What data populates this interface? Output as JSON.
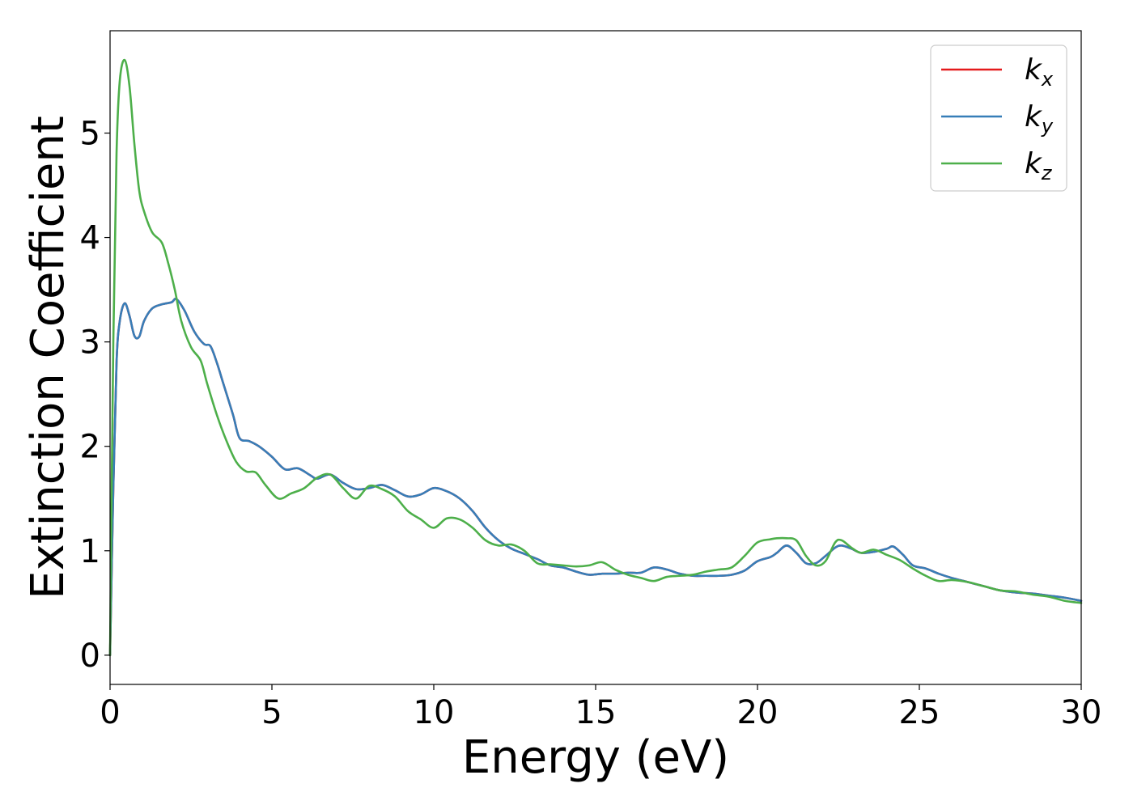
{
  "chart_data": {
    "type": "line",
    "title": "",
    "xlabel": "Energy (eV)",
    "ylabel": "Extinction Coefficient",
    "xlim": [
      0,
      30
    ],
    "ylim": [
      -0.28,
      5.98
    ],
    "xticks": [
      0,
      5,
      10,
      15,
      20,
      25,
      30
    ],
    "yticks": [
      0,
      1,
      2,
      3,
      4,
      5
    ],
    "grid": false,
    "legend_position": "top-right",
    "series": [
      {
        "name": "k_x",
        "legend_main": "k",
        "legend_sub": "x",
        "color": "#e41a1c",
        "x": [
          0,
          0.1,
          0.2,
          0.3,
          0.45,
          0.6,
          0.75,
          0.9,
          1.05,
          1.3,
          1.6,
          1.9,
          2.05,
          2.3,
          2.6,
          2.9,
          3.1,
          3.3,
          3.5,
          3.8,
          4.0,
          4.3,
          4.6,
          5.0,
          5.4,
          5.8,
          6.2,
          6.4,
          6.8,
          7.2,
          7.6,
          8.0,
          8.4,
          8.8,
          9.2,
          9.6,
          10.0,
          10.4,
          10.8,
          11.2,
          11.6,
          12.0,
          12.4,
          12.8,
          13.2,
          13.6,
          14.0,
          14.4,
          14.8,
          15.2,
          15.6,
          16.0,
          16.4,
          16.8,
          17.2,
          17.6,
          18.0,
          18.4,
          18.8,
          19.2,
          19.6,
          20.0,
          20.4,
          20.6,
          20.9,
          21.2,
          21.5,
          21.8,
          22.1,
          22.4,
          22.6,
          22.9,
          23.2,
          23.6,
          24.0,
          24.2,
          24.5,
          24.8,
          25.2,
          25.6,
          26.0,
          26.5,
          27.0,
          27.5,
          28.0,
          28.5,
          29.0,
          29.5,
          30.0
        ],
        "y": [
          0,
          1.6,
          2.8,
          3.2,
          3.37,
          3.25,
          3.06,
          3.05,
          3.2,
          3.32,
          3.36,
          3.38,
          3.41,
          3.3,
          3.1,
          2.98,
          2.96,
          2.8,
          2.6,
          2.3,
          2.08,
          2.05,
          2.0,
          1.9,
          1.78,
          1.79,
          1.72,
          1.69,
          1.73,
          1.65,
          1.59,
          1.6,
          1.63,
          1.58,
          1.52,
          1.54,
          1.6,
          1.57,
          1.5,
          1.38,
          1.22,
          1.1,
          1.02,
          0.97,
          0.92,
          0.86,
          0.84,
          0.8,
          0.77,
          0.78,
          0.78,
          0.79,
          0.79,
          0.84,
          0.82,
          0.78,
          0.76,
          0.76,
          0.76,
          0.77,
          0.81,
          0.9,
          0.94,
          0.98,
          1.05,
          0.98,
          0.88,
          0.88,
          0.95,
          1.03,
          1.05,
          1.02,
          0.98,
          0.99,
          1.02,
          1.04,
          0.96,
          0.86,
          0.83,
          0.78,
          0.74,
          0.7,
          0.66,
          0.62,
          0.6,
          0.59,
          0.57,
          0.55,
          0.52
        ]
      },
      {
        "name": "k_y",
        "legend_main": "k",
        "legend_sub": "y",
        "color": "#377eb8",
        "x": [
          0,
          0.1,
          0.2,
          0.3,
          0.45,
          0.6,
          0.75,
          0.9,
          1.05,
          1.3,
          1.6,
          1.9,
          2.05,
          2.3,
          2.6,
          2.9,
          3.1,
          3.3,
          3.5,
          3.8,
          4.0,
          4.3,
          4.6,
          5.0,
          5.4,
          5.8,
          6.2,
          6.4,
          6.8,
          7.2,
          7.6,
          8.0,
          8.4,
          8.8,
          9.2,
          9.6,
          10.0,
          10.4,
          10.8,
          11.2,
          11.6,
          12.0,
          12.4,
          12.8,
          13.2,
          13.6,
          14.0,
          14.4,
          14.8,
          15.2,
          15.6,
          16.0,
          16.4,
          16.8,
          17.2,
          17.6,
          18.0,
          18.4,
          18.8,
          19.2,
          19.6,
          20.0,
          20.4,
          20.6,
          20.9,
          21.2,
          21.5,
          21.8,
          22.1,
          22.4,
          22.6,
          22.9,
          23.2,
          23.6,
          24.0,
          24.2,
          24.5,
          24.8,
          25.2,
          25.6,
          26.0,
          26.5,
          27.0,
          27.5,
          28.0,
          28.5,
          29.0,
          29.5,
          30.0
        ],
        "y": [
          0,
          1.6,
          2.8,
          3.2,
          3.37,
          3.25,
          3.06,
          3.05,
          3.2,
          3.32,
          3.36,
          3.38,
          3.41,
          3.3,
          3.1,
          2.98,
          2.96,
          2.8,
          2.6,
          2.3,
          2.08,
          2.05,
          2.0,
          1.9,
          1.78,
          1.79,
          1.72,
          1.69,
          1.73,
          1.65,
          1.59,
          1.6,
          1.63,
          1.58,
          1.52,
          1.54,
          1.6,
          1.57,
          1.5,
          1.38,
          1.22,
          1.1,
          1.02,
          0.97,
          0.92,
          0.86,
          0.84,
          0.8,
          0.77,
          0.78,
          0.78,
          0.79,
          0.79,
          0.84,
          0.82,
          0.78,
          0.76,
          0.76,
          0.76,
          0.77,
          0.81,
          0.9,
          0.94,
          0.98,
          1.05,
          0.98,
          0.88,
          0.88,
          0.95,
          1.03,
          1.05,
          1.02,
          0.98,
          0.99,
          1.02,
          1.04,
          0.96,
          0.86,
          0.83,
          0.78,
          0.74,
          0.7,
          0.66,
          0.62,
          0.6,
          0.59,
          0.57,
          0.55,
          0.52
        ]
      },
      {
        "name": "k_z",
        "legend_main": "k",
        "legend_sub": "z",
        "color": "#4daf4a",
        "x": [
          0,
          0.1,
          0.2,
          0.3,
          0.45,
          0.6,
          0.75,
          0.9,
          1.05,
          1.3,
          1.6,
          1.8,
          2.0,
          2.2,
          2.5,
          2.8,
          3.0,
          3.3,
          3.6,
          3.9,
          4.2,
          4.5,
          4.8,
          5.2,
          5.6,
          6.0,
          6.4,
          6.8,
          7.2,
          7.6,
          8.0,
          8.4,
          8.8,
          9.2,
          9.6,
          10.0,
          10.4,
          10.8,
          11.2,
          11.6,
          12.0,
          12.4,
          12.8,
          13.2,
          13.6,
          14.0,
          14.4,
          14.8,
          15.2,
          15.6,
          16.0,
          16.4,
          16.8,
          17.2,
          17.6,
          18.0,
          18.4,
          18.8,
          19.2,
          19.6,
          20.0,
          20.4,
          20.6,
          20.9,
          21.2,
          21.5,
          21.8,
          22.1,
          22.4,
          22.6,
          22.9,
          23.2,
          23.6,
          24.0,
          24.4,
          24.8,
          25.2,
          25.6,
          26.0,
          26.5,
          27.0,
          27.5,
          28.0,
          28.5,
          29.0,
          29.5,
          30.0
        ],
        "y": [
          0,
          3.0,
          4.8,
          5.5,
          5.7,
          5.45,
          4.9,
          4.45,
          4.25,
          4.05,
          3.95,
          3.75,
          3.5,
          3.2,
          2.95,
          2.82,
          2.6,
          2.3,
          2.05,
          1.85,
          1.76,
          1.75,
          1.63,
          1.5,
          1.55,
          1.6,
          1.7,
          1.73,
          1.6,
          1.5,
          1.62,
          1.59,
          1.52,
          1.38,
          1.3,
          1.22,
          1.31,
          1.3,
          1.22,
          1.1,
          1.05,
          1.06,
          1.0,
          0.88,
          0.87,
          0.86,
          0.85,
          0.86,
          0.89,
          0.82,
          0.77,
          0.74,
          0.71,
          0.75,
          0.76,
          0.77,
          0.8,
          0.82,
          0.84,
          0.95,
          1.08,
          1.11,
          1.12,
          1.12,
          1.1,
          0.95,
          0.86,
          0.9,
          1.08,
          1.1,
          1.03,
          0.98,
          1.01,
          0.96,
          0.91,
          0.83,
          0.76,
          0.71,
          0.72,
          0.7,
          0.66,
          0.62,
          0.61,
          0.58,
          0.56,
          0.52,
          0.5
        ]
      }
    ]
  }
}
